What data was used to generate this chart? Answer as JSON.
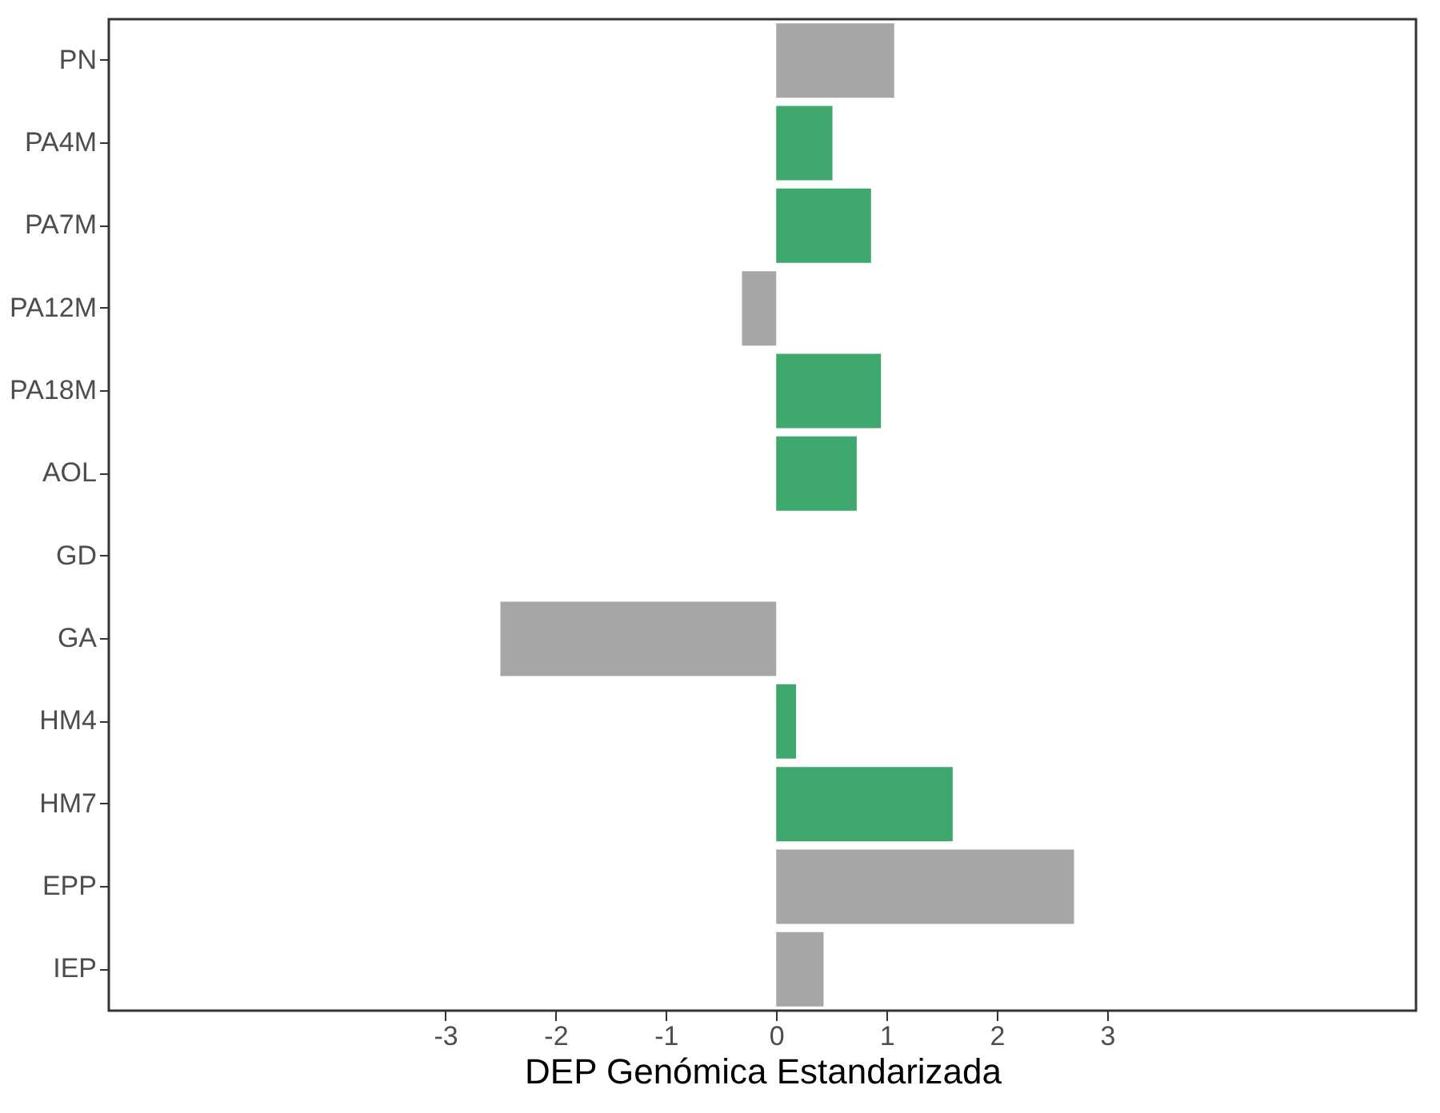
{
  "chart_data": {
    "type": "bar",
    "orientation": "horizontal",
    "xlabel": "DEP Genómica Estandarizada",
    "categories": [
      "PN",
      "PA4M",
      "PA7M",
      "PA12M",
      "PA18M",
      "AOL",
      "GD",
      "GA",
      "HM4",
      "HM7",
      "EPP",
      "IEP"
    ],
    "values": [
      1.07,
      0.51,
      0.86,
      -0.31,
      0.95,
      0.73,
      null,
      -2.5,
      0.18,
      1.6,
      2.7,
      0.43
    ],
    "colors": [
      "#a6a6a6",
      "#3fa86f",
      "#3fa86f",
      "#a6a6a6",
      "#3fa86f",
      "#3fa86f",
      "#a6a6a6",
      "#a6a6a6",
      "#3fa86f",
      "#3fa86f",
      "#a6a6a6",
      "#a6a6a6"
    ],
    "xlim": [
      -6.05,
      5.8
    ],
    "xticks": [
      -3,
      -2,
      -1,
      0,
      1,
      2,
      3
    ],
    "grid": false
  }
}
